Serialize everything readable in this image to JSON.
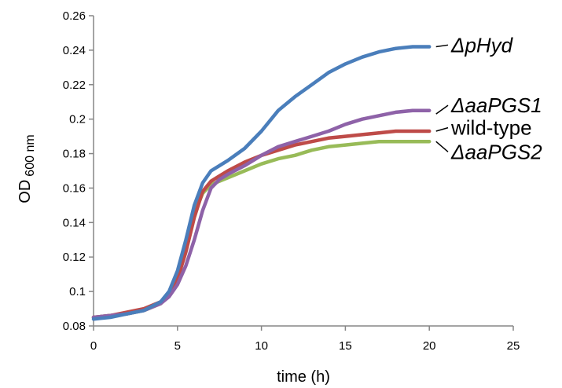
{
  "chart_data": {
    "type": "line",
    "xlabel": "time (h)",
    "ylabel": "OD",
    "ylabel_sub": "600 nm",
    "xlim": [
      0,
      25
    ],
    "ylim": [
      0.08,
      0.26
    ],
    "xticks": [
      "0",
      "5",
      "10",
      "15",
      "20",
      "25"
    ],
    "yticks": [
      "0.08",
      "0.1",
      "0.12",
      "0.14",
      "0.16",
      "0.18",
      "0.2",
      "0.22",
      "0.24",
      "0.26"
    ],
    "grid": false,
    "legend": "inline labels at right end of each curve",
    "series": [
      {
        "name": "ΔpHyd",
        "color": "#4a7ebb",
        "x": [
          0,
          1,
          2,
          3,
          4,
          4.5,
          5,
          5.5,
          6,
          6.5,
          7,
          7.5,
          8,
          9,
          10,
          11,
          12,
          13,
          14,
          15,
          16,
          17,
          18,
          19,
          20
        ],
        "y": [
          0.084,
          0.085,
          0.087,
          0.089,
          0.094,
          0.1,
          0.112,
          0.13,
          0.15,
          0.163,
          0.17,
          0.173,
          0.176,
          0.183,
          0.193,
          0.205,
          0.213,
          0.22,
          0.227,
          0.232,
          0.236,
          0.239,
          0.241,
          0.242,
          0.242
        ]
      },
      {
        "name": "ΔaaPGS1",
        "color": "#8e62a8",
        "x": [
          0,
          1,
          2,
          3,
          4,
          4.5,
          5,
          5.5,
          6,
          6.5,
          7,
          7.5,
          8,
          9,
          10,
          11,
          12,
          13,
          14,
          15,
          16,
          17,
          18,
          19,
          20
        ],
        "y": [
          0.085,
          0.086,
          0.087,
          0.089,
          0.093,
          0.097,
          0.104,
          0.115,
          0.13,
          0.147,
          0.16,
          0.165,
          0.168,
          0.173,
          0.179,
          0.184,
          0.187,
          0.19,
          0.193,
          0.197,
          0.2,
          0.202,
          0.204,
          0.205,
          0.205
        ]
      },
      {
        "name": "wild-type",
        "color": "#be4b48",
        "x": [
          0,
          1,
          2,
          3,
          4,
          4.5,
          5,
          5.5,
          6,
          6.5,
          7,
          7.5,
          8,
          9,
          10,
          11,
          12,
          13,
          14,
          15,
          16,
          17,
          18,
          19,
          20
        ],
        "y": [
          0.085,
          0.086,
          0.088,
          0.09,
          0.094,
          0.098,
          0.107,
          0.123,
          0.143,
          0.158,
          0.164,
          0.167,
          0.17,
          0.175,
          0.179,
          0.182,
          0.185,
          0.187,
          0.189,
          0.19,
          0.191,
          0.192,
          0.193,
          0.193,
          0.193
        ]
      },
      {
        "name": "ΔaaPGS2",
        "color": "#98bb58",
        "x": [
          0,
          1,
          2,
          3,
          4,
          4.5,
          5,
          5.5,
          6,
          6.5,
          7,
          7.5,
          8,
          9,
          10,
          11,
          12,
          13,
          14,
          15,
          16,
          17,
          18,
          19,
          20
        ],
        "y": [
          0.085,
          0.086,
          0.087,
          0.089,
          0.093,
          0.098,
          0.108,
          0.126,
          0.145,
          0.157,
          0.162,
          0.164,
          0.166,
          0.17,
          0.174,
          0.177,
          0.179,
          0.182,
          0.184,
          0.185,
          0.186,
          0.187,
          0.187,
          0.187,
          0.187
        ]
      }
    ]
  }
}
